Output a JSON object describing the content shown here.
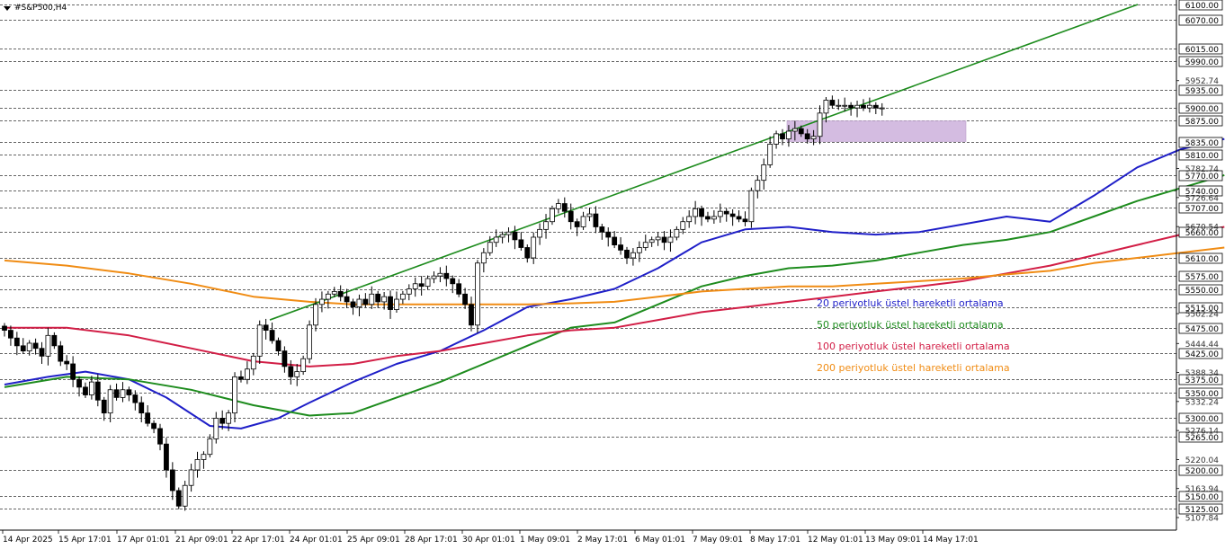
{
  "symbol": "#S&P500,H4",
  "chart_data": {
    "type": "candlestick",
    "price_range": [
      5107.84,
      6100.0
    ],
    "horizontal_levels": [
      6100,
      6070,
      6015,
      5990,
      5935,
      5900,
      5875,
      5835,
      5810,
      5770,
      5740,
      5707,
      5660,
      5610,
      5575,
      5550,
      5515,
      5475,
      5425,
      5375,
      5350,
      5300,
      5265,
      5200,
      5150,
      5125
    ],
    "level_labels": [
      "6100.00",
      "6070.00",
      "6015.00",
      "5990.00",
      "5935.00",
      "5900.00",
      "5875.00",
      "5835.00",
      "5810.00",
      "5770.00",
      "5740.00",
      "5707.00",
      "5660.00",
      "5610.00",
      "5575.00",
      "5550.00",
      "5515.00",
      "5475.00",
      "5425.00",
      "5375.00",
      "5350.00",
      "5300.00",
      "5265.00",
      "5200.00",
      "5150.00",
      "5125.00"
    ],
    "tick_labels": [
      {
        "v": 5952.74,
        "t": "5952.74"
      },
      {
        "v": 5782.74,
        "t": "5782.74"
      },
      {
        "v": 5726.64,
        "t": "5726.64"
      },
      {
        "v": 5670.54,
        "t": "5670.54"
      },
      {
        "v": 5502.24,
        "t": "5502.24"
      },
      {
        "v": 5444.44,
        "t": "5444.44"
      },
      {
        "v": 5388.34,
        "t": "5388.34"
      },
      {
        "v": 5332.24,
        "t": "5332.24"
      },
      {
        "v": 5276.14,
        "t": "5276.14"
      },
      {
        "v": 5220.04,
        "t": "5220.04"
      },
      {
        "v": 5163.94,
        "t": "5163.94"
      },
      {
        "v": 5107.84,
        "t": "5107.84"
      }
    ],
    "x_labels": [
      "14 Apr 2025",
      "15 Apr 17:01",
      "17 Apr 01:01",
      "21 Apr 09:01",
      "22 Apr 17:01",
      "24 Apr 01:01",
      "25 Apr 09:01",
      "28 Apr 17:01",
      "30 Apr 01:01",
      "1 May 09:01",
      "2 May 17:01",
      "6 May 01:01",
      "7 May 09:01",
      "8 May 17:01",
      "12 May 01:01",
      "13 May 09:01",
      "14 May 17:01"
    ],
    "closes": [
      5470,
      5455,
      5440,
      5430,
      5445,
      5435,
      5420,
      5460,
      5440,
      5410,
      5405,
      5375,
      5360,
      5345,
      5370,
      5335,
      5310,
      5355,
      5340,
      5355,
      5345,
      5330,
      5310,
      5290,
      5280,
      5250,
      5200,
      5160,
      5130,
      5170,
      5200,
      5220,
      5230,
      5260,
      5300,
      5290,
      5310,
      5380,
      5375,
      5395,
      5420,
      5480,
      5470,
      5450,
      5430,
      5400,
      5380,
      5390,
      5415,
      5480,
      5520,
      5530,
      5540,
      5545,
      5535,
      5525,
      5515,
      5530,
      5520,
      5540,
      5525,
      5535,
      5510,
      5530,
      5540,
      5550,
      5560,
      5555,
      5570,
      5575,
      5580,
      5570,
      5560,
      5540,
      5520,
      5480,
      5600,
      5620,
      5640,
      5650,
      5655,
      5660,
      5645,
      5630,
      5610,
      5650,
      5665,
      5680,
      5705,
      5715,
      5700,
      5680,
      5670,
      5690,
      5695,
      5670,
      5660,
      5650,
      5635,
      5625,
      5610,
      5620,
      5630,
      5640,
      5645,
      5650,
      5640,
      5650,
      5665,
      5680,
      5690,
      5705,
      5690,
      5685,
      5690,
      5700,
      5695,
      5690,
      5685,
      5680,
      5740,
      5760,
      5790,
      5830,
      5850,
      5840,
      5855,
      5860,
      5850,
      5840,
      5845,
      5890,
      5915,
      5905,
      5905,
      5905,
      5900,
      5905,
      5900,
      5905,
      5900,
      5900
    ],
    "support_resistance_zone": {
      "top": 5875,
      "bottom": 5835
    },
    "trend_channel": {
      "line_start": 5490,
      "line_end": 6100
    },
    "series": [
      {
        "name": "20 periyotluk üstel hareketli ortalama",
        "color": "#1f1fc8",
        "points": [
          [
            0,
            5365
          ],
          [
            7,
            5380
          ],
          [
            13,
            5390
          ],
          [
            20,
            5375
          ],
          [
            26,
            5340
          ],
          [
            33,
            5285
          ],
          [
            38,
            5280
          ],
          [
            44,
            5300
          ],
          [
            49,
            5330
          ],
          [
            56,
            5370
          ],
          [
            63,
            5405
          ],
          [
            70,
            5430
          ],
          [
            77,
            5470
          ],
          [
            84,
            5515
          ],
          [
            91,
            5530
          ],
          [
            98,
            5550
          ],
          [
            105,
            5590
          ],
          [
            112,
            5640
          ],
          [
            119,
            5665
          ],
          [
            126,
            5670
          ],
          [
            133,
            5660
          ],
          [
            140,
            5655
          ],
          [
            147,
            5660
          ],
          [
            154,
            5675
          ],
          [
            161,
            5690
          ],
          [
            168,
            5680
          ],
          [
            175,
            5730
          ],
          [
            182,
            5785
          ],
          [
            189,
            5820
          ],
          [
            196,
            5840
          ]
        ]
      },
      {
        "name": "50 periyotluk üstel hareketli ortalama",
        "color": "#1e8c1e",
        "points": [
          [
            0,
            5360
          ],
          [
            10,
            5380
          ],
          [
            20,
            5375
          ],
          [
            30,
            5355
          ],
          [
            40,
            5325
          ],
          [
            49,
            5305
          ],
          [
            56,
            5310
          ],
          [
            63,
            5340
          ],
          [
            70,
            5370
          ],
          [
            77,
            5405
          ],
          [
            84,
            5440
          ],
          [
            91,
            5475
          ],
          [
            98,
            5485
          ],
          [
            105,
            5520
          ],
          [
            112,
            5555
          ],
          [
            119,
            5575
          ],
          [
            126,
            5590
          ],
          [
            133,
            5595
          ],
          [
            140,
            5605
          ],
          [
            147,
            5620
          ],
          [
            154,
            5635
          ],
          [
            161,
            5645
          ],
          [
            168,
            5660
          ],
          [
            175,
            5690
          ],
          [
            182,
            5720
          ],
          [
            189,
            5745
          ],
          [
            196,
            5770
          ]
        ]
      },
      {
        "name": "100 periyotluk üstel hareketli ortalama",
        "color": "#d21e46",
        "points": [
          [
            0,
            5475
          ],
          [
            10,
            5475
          ],
          [
            20,
            5460
          ],
          [
            30,
            5435
          ],
          [
            40,
            5410
          ],
          [
            49,
            5400
          ],
          [
            56,
            5405
          ],
          [
            63,
            5420
          ],
          [
            70,
            5430
          ],
          [
            77,
            5445
          ],
          [
            84,
            5460
          ],
          [
            91,
            5470
          ],
          [
            98,
            5475
          ],
          [
            105,
            5490
          ],
          [
            112,
            5505
          ],
          [
            119,
            5515
          ],
          [
            126,
            5525
          ],
          [
            133,
            5535
          ],
          [
            140,
            5545
          ],
          [
            147,
            5555
          ],
          [
            154,
            5565
          ],
          [
            161,
            5580
          ],
          [
            168,
            5595
          ],
          [
            175,
            5615
          ],
          [
            182,
            5635
          ],
          [
            189,
            5655
          ],
          [
            196,
            5670
          ]
        ]
      },
      {
        "name": "200 periyotluk üstel hareketli ortalama",
        "color": "#f08c14",
        "points": [
          [
            0,
            5605
          ],
          [
            10,
            5595
          ],
          [
            20,
            5580
          ],
          [
            30,
            5560
          ],
          [
            40,
            5535
          ],
          [
            49,
            5525
          ],
          [
            56,
            5520
          ],
          [
            63,
            5520
          ],
          [
            70,
            5520
          ],
          [
            77,
            5520
          ],
          [
            84,
            5520
          ],
          [
            91,
            5522
          ],
          [
            98,
            5525
          ],
          [
            105,
            5535
          ],
          [
            112,
            5545
          ],
          [
            119,
            5550
          ],
          [
            126,
            5555
          ],
          [
            133,
            5555
          ],
          [
            140,
            5560
          ],
          [
            147,
            5565
          ],
          [
            154,
            5570
          ],
          [
            161,
            5578
          ],
          [
            168,
            5585
          ],
          [
            175,
            5600
          ],
          [
            182,
            5610
          ],
          [
            189,
            5620
          ],
          [
            196,
            5630
          ]
        ]
      }
    ]
  },
  "legend": [
    {
      "label": "20 periyotluk üstel hareketli ortalama",
      "color": "#1f1fc8"
    },
    {
      "label": "50 periyotluk üstel hareketli ortalama",
      "color": "#1e8c1e"
    },
    {
      "label": "100 periyotluk üstel hareketli ortalama",
      "color": "#d21e46"
    },
    {
      "label": "200 periyotluk üstel hareketli ortalama",
      "color": "#f08c14"
    }
  ]
}
